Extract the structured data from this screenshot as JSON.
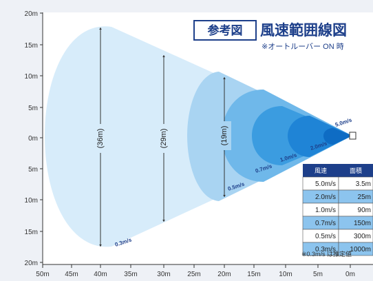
{
  "header": {
    "badge": "参考図",
    "title": "風速範囲線図",
    "subtitle": "※オートルーバー ON 時"
  },
  "y_axis": {
    "labels": [
      "20m",
      "15m",
      "10m",
      "5m",
      "0m",
      "5m",
      "10m",
      "15m",
      "20m"
    ]
  },
  "x_axis": {
    "labels": [
      "50m",
      "45m",
      "40m",
      "35m",
      "30m",
      "25m",
      "20m",
      "15m",
      "10m",
      "5m",
      "0m"
    ]
  },
  "zones": [
    {
      "speed": "0.3m/s",
      "color": "#d7ecfa"
    },
    {
      "speed": "0.5m/s",
      "color": "#a9d4f2"
    },
    {
      "speed": "0.7m/s",
      "color": "#6fb8ea"
    },
    {
      "speed": "1.0m/s",
      "color": "#3b9ce0"
    },
    {
      "speed": "2.0m/s",
      "color": "#1f84d6"
    },
    {
      "speed": "5.0m/s",
      "color": "#0e6cc4"
    }
  ],
  "dimensions": [
    "(36m)",
    "(29m)",
    "(19m)"
  ],
  "table": {
    "headers": [
      "風速",
      "面積"
    ],
    "rows": [
      {
        "speed": "5.0m/s",
        "area": "3.5m"
      },
      {
        "speed": "2.0m/s",
        "area": "25m"
      },
      {
        "speed": "1.0m/s",
        "area": "90m"
      },
      {
        "speed": "0.7m/s",
        "area": "150m"
      },
      {
        "speed": "0.5m/s",
        "area": "300m"
      },
      {
        "speed": "0.3m/s",
        "area": "1000m"
      }
    ],
    "note": "※0.3m/s は推定値"
  }
}
